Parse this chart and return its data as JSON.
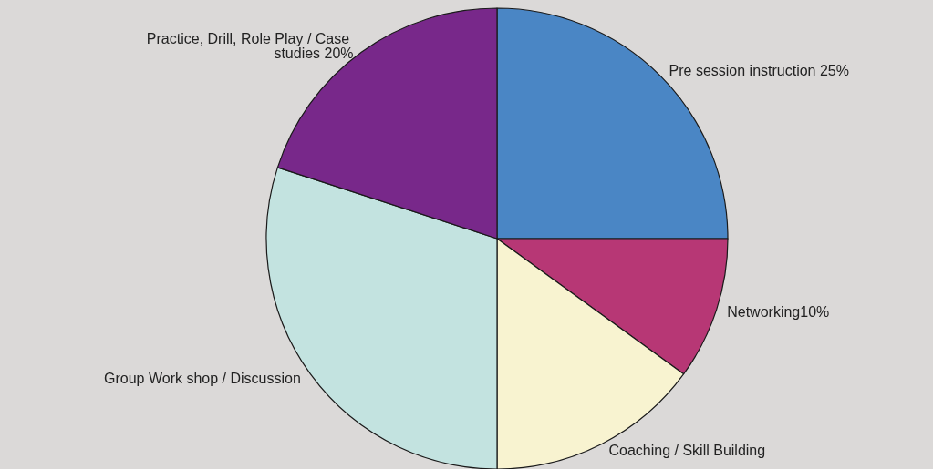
{
  "chart_data": {
    "type": "pie",
    "categories": [
      "Pre session instruction 25%",
      "Networking10%",
      "Coaching / Skill Building",
      "Group Work shop / Discussion",
      "Practice, Drill, Role Play / Case studies 20%"
    ],
    "values": [
      25,
      10,
      15,
      30,
      20
    ],
    "colors": [
      "#4a86c5",
      "#b73775",
      "#f8f3d0",
      "#c3e3e0",
      "#78288a"
    ],
    "legend": false
  }
}
